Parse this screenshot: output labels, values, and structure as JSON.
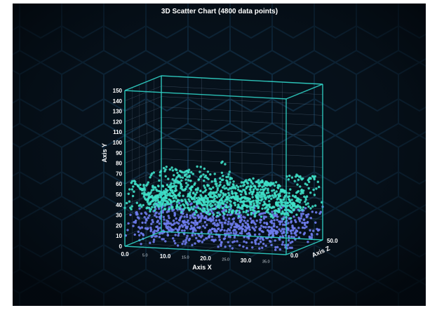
{
  "chart_data": {
    "type": "scatter",
    "title": "3D Scatter Chart (4800 data points)",
    "x_axis": {
      "label": "Axis X",
      "range": [
        0,
        40
      ],
      "major_ticks": [
        "0.0",
        "10.0",
        "20.0",
        "30.0"
      ],
      "minor_ticks": [
        "5.0",
        "15.0",
        "25.0",
        "35.0"
      ]
    },
    "y_axis": {
      "label": "Axis Y",
      "range": [
        0,
        150
      ],
      "ticks": [
        "0",
        "10",
        "20",
        "30",
        "40",
        "50",
        "60",
        "70",
        "80",
        "90",
        "100",
        "110",
        "120",
        "130",
        "140",
        "150"
      ]
    },
    "z_axis": {
      "label": "Axis Z",
      "range": [
        0,
        50
      ],
      "ticks": [
        "0.0",
        "50.0"
      ]
    },
    "point_count": 4800,
    "series": [
      {
        "color": "#3fe0c8"
      },
      {
        "color": "#6f7df0"
      }
    ],
    "grid": true
  },
  "colors": {
    "background": "#061019",
    "frame": "#2fd3c6",
    "grid": "#5a6f86",
    "hex_pattern": "#12324a"
  }
}
